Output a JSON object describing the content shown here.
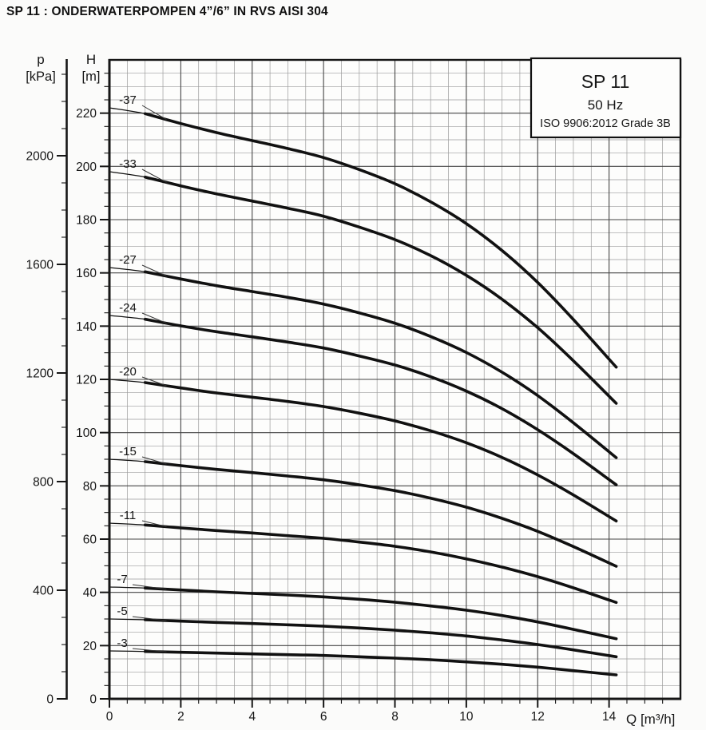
{
  "page": {
    "title": "SP 11 : ONDERWATERPOMPEN 4”/6” IN RVS AISI 304"
  },
  "colors": {
    "ink": "#161616",
    "curve": "#111111",
    "grid_minor": "#9b9b9b",
    "grid_major": "#454545",
    "plot_bg": "#fdfdfc",
    "page_bg": "#fbfbfa"
  },
  "chart_data": {
    "type": "line",
    "title": "SP 11",
    "frequency": "50 Hz",
    "standard": "ISO 9906:2012 Grade 3B",
    "xlabel": "Q [m³/h]",
    "y_axis_outer": {
      "symbol": "p",
      "unit": "[kPa]",
      "ticks_major": [
        0,
        400,
        800,
        1200,
        1600,
        2000
      ],
      "minor_step": 100,
      "minor_max": 2300,
      "range": [
        0,
        2350
      ]
    },
    "y_axis_inner": {
      "symbol": "H",
      "unit": "[m]",
      "ticks_major": [
        0,
        20,
        40,
        60,
        80,
        100,
        120,
        140,
        160,
        180,
        200,
        220
      ],
      "minor_step": 5,
      "range": [
        0,
        240
      ]
    },
    "x_axis": {
      "ticks_major": [
        0,
        2,
        4,
        6,
        8,
        10,
        12,
        14
      ],
      "minor_step": 0.5,
      "range": [
        0,
        16
      ]
    },
    "x": [
      0,
      1,
      2,
      3,
      4,
      5,
      6,
      7,
      8,
      9,
      10,
      11,
      12,
      13,
      14.2
    ],
    "series": [
      {
        "name": "-37",
        "values": [
          222.0,
          219.8,
          216.1,
          212.7,
          209.7,
          206.7,
          203.3,
          198.8,
          193.5,
          186.7,
          178.5,
          168.4,
          156.4,
          142.5,
          124.6
        ]
      },
      {
        "name": "-33",
        "values": [
          198.0,
          196.0,
          192.7,
          189.7,
          187.0,
          184.3,
          181.3,
          177.2,
          172.5,
          166.5,
          159.1,
          150.1,
          139.4,
          127.0,
          111.0
        ]
      },
      {
        "name": "-27",
        "values": [
          162.0,
          160.4,
          157.7,
          155.2,
          153.0,
          150.8,
          148.3,
          145.0,
          141.1,
          136.1,
          130.1,
          122.7,
          113.9,
          103.7,
          90.6
        ]
      },
      {
        "name": "-24",
        "values": [
          144.0,
          142.6,
          140.1,
          137.9,
          136.0,
          134.0,
          131.8,
          128.8,
          125.4,
          121.0,
          115.6,
          109.0,
          101.1,
          92.1,
          80.4
        ]
      },
      {
        "name": "-20",
        "values": [
          120.0,
          118.8,
          116.8,
          114.9,
          113.3,
          111.7,
          109.8,
          107.3,
          104.4,
          100.7,
          96.2,
          90.7,
          84.1,
          76.6,
          66.8
        ]
      },
      {
        "name": "-15",
        "values": [
          90.0,
          89.1,
          87.6,
          86.2,
          85.0,
          83.7,
          82.3,
          80.4,
          78.2,
          75.4,
          72.0,
          67.8,
          62.9,
          57.2,
          49.8
        ]
      },
      {
        "name": "-11",
        "values": [
          66.0,
          65.3,
          64.2,
          63.2,
          62.3,
          61.3,
          60.3,
          58.9,
          57.3,
          55.2,
          52.6,
          49.5,
          45.9,
          41.7,
          36.2
        ]
      },
      {
        "name": "-7",
        "values": [
          42.0,
          41.6,
          40.9,
          40.2,
          39.6,
          39.0,
          38.3,
          37.4,
          36.3,
          34.9,
          33.3,
          31.3,
          28.9,
          26.1,
          22.6
        ]
      },
      {
        "name": "-5",
        "values": [
          30.0,
          29.7,
          29.2,
          28.7,
          28.3,
          27.8,
          27.3,
          26.6,
          25.8,
          24.8,
          23.6,
          22.1,
          20.4,
          18.4,
          15.8
        ]
      },
      {
        "name": "-3",
        "values": [
          18.0,
          17.8,
          17.5,
          17.2,
          16.9,
          16.6,
          16.3,
          15.8,
          15.3,
          14.7,
          13.9,
          13.0,
          11.9,
          10.6,
          9.0
        ]
      }
    ],
    "legend_position": "top-right",
    "grid": true
  }
}
